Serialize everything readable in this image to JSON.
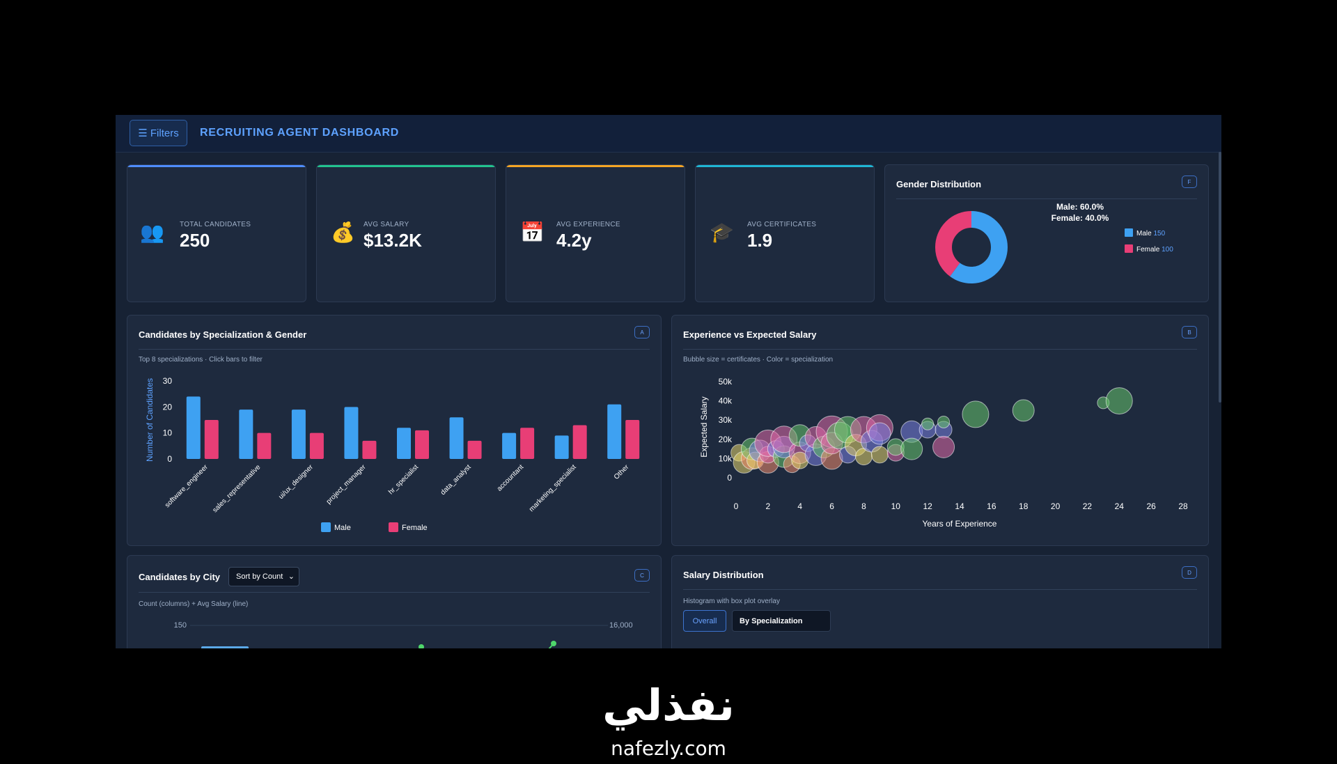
{
  "app": {
    "filters_label": "☰ Filters",
    "title": "RECRUITING AGENT DASHBOARD"
  },
  "kpis": [
    {
      "label": "TOTAL CANDIDATES",
      "value": "250",
      "icon": "people-icon",
      "accent": "#4f8dff"
    },
    {
      "label": "AVG SALARY",
      "value": "$13.2K",
      "icon": "money-bag-icon",
      "accent": "#22c38e"
    },
    {
      "label": "AVG EXPERIENCE",
      "value": "4.2y",
      "icon": "calendar-icon",
      "accent": "#f5a524"
    },
    {
      "label": "AVG CERTIFICATES",
      "value": "1.9",
      "icon": "graduation-cap-icon",
      "accent": "#1fb6d4"
    }
  ],
  "gender": {
    "title": "Gender Distribution",
    "badge": "F",
    "summary_male": "Male: 60.0%",
    "summary_female": "Female: 40.0%"
  },
  "spec_card": {
    "title": "Candidates by Specialization & Gender",
    "badge": "A",
    "subtitle": "Top 8 specializations · Click bars to filter"
  },
  "bubble_card": {
    "title": "Experience vs Expected Salary",
    "badge": "B",
    "subtitle": "Bubble size = certificates · Color = specialization"
  },
  "city_card": {
    "title": "Candidates by City",
    "badge": "C",
    "sort_value": "Sort by Count",
    "subtitle": "Count (columns) + Avg Salary (line)",
    "left_tick": "150",
    "right_tick": "16,000"
  },
  "salary_card": {
    "title": "Salary Distribution",
    "badge": "D",
    "subtitle": "Histogram with box plot overlay",
    "btn_overall": "Overall",
    "btn_by_spec": "By Specialization"
  },
  "brand": {
    "arabic": "نفذلي",
    "latin": "nafezly.com"
  },
  "colors": {
    "male": "#3ea1f2",
    "female": "#e83e76",
    "accent": "#5ea2ff"
  },
  "chart_data": [
    {
      "id": "gender-donut",
      "type": "pie",
      "title": "Gender Distribution",
      "series": [
        {
          "name": "Male",
          "value": 150,
          "color": "#3ea1f2"
        },
        {
          "name": "Female",
          "value": 100,
          "color": "#e83e76"
        }
      ]
    },
    {
      "id": "spec-bar",
      "type": "bar",
      "categories": [
        "software_engineer",
        "sales_representative",
        "ui/ux_designer",
        "project_manager",
        "hr_specialist",
        "data_analyst",
        "accountant",
        "marketing_specialist",
        "Other"
      ],
      "series": [
        {
          "name": "Male",
          "color": "#3ea1f2",
          "values": [
            24,
            19,
            19,
            20,
            12,
            16,
            10,
            9,
            21
          ]
        },
        {
          "name": "Female",
          "color": "#e83e76",
          "values": [
            15,
            10,
            10,
            7,
            11,
            7,
            12,
            13,
            15
          ]
        }
      ],
      "ylabel": "Number of Candidates",
      "ylim": [
        0,
        30
      ],
      "yticks": [
        0,
        10,
        20,
        30
      ],
      "legend": "bottom-center"
    },
    {
      "id": "exp-salary-bubble",
      "type": "scatter",
      "xlabel": "Years of Experience",
      "ylabel": "Expected Salary",
      "xlim": [
        0,
        28
      ],
      "ylim": [
        0,
        50000
      ],
      "xticks": [
        0,
        2,
        4,
        6,
        8,
        10,
        12,
        14,
        16,
        18,
        20,
        22,
        24,
        26,
        28
      ],
      "yticks": [
        {
          "v": 0,
          "l": "0"
        },
        {
          "v": 10000,
          "l": "10k"
        },
        {
          "v": 20000,
          "l": "20k"
        },
        {
          "v": 30000,
          "l": "30k"
        },
        {
          "v": 40000,
          "l": "40k"
        },
        {
          "v": 50000,
          "l": "50k"
        }
      ],
      "points": [
        {
          "x": 0.2,
          "y": 13000,
          "s": 2,
          "c": "#e6d36b"
        },
        {
          "x": 0.5,
          "y": 8000,
          "s": 3,
          "c": "#e6d36b"
        },
        {
          "x": 1,
          "y": 10000,
          "s": 3,
          "c": "#f08a6c"
        },
        {
          "x": 1,
          "y": 15000,
          "s": 3,
          "c": "#67c46b"
        },
        {
          "x": 1.2,
          "y": 9000,
          "s": 2,
          "c": "#e6d36b"
        },
        {
          "x": 1.5,
          "y": 14000,
          "s": 3,
          "c": "#7a7fe0"
        },
        {
          "x": 2,
          "y": 8000,
          "s": 3,
          "c": "#f08a6c"
        },
        {
          "x": 2,
          "y": 12000,
          "s": 2,
          "c": "#e06aa8"
        },
        {
          "x": 2,
          "y": 18000,
          "s": 4,
          "c": "#e06aa8"
        },
        {
          "x": 2.5,
          "y": 15000,
          "s": 2,
          "c": "#7a7fe0"
        },
        {
          "x": 3,
          "y": 11000,
          "s": 3,
          "c": "#67c46b"
        },
        {
          "x": 3,
          "y": 16000,
          "s": 3,
          "c": "#7a7fe0"
        },
        {
          "x": 3,
          "y": 20000,
          "s": 4,
          "c": "#e06aa8"
        },
        {
          "x": 3.5,
          "y": 7000,
          "s": 2,
          "c": "#f08a6c"
        },
        {
          "x": 4,
          "y": 13000,
          "s": 3,
          "c": "#e06aa8"
        },
        {
          "x": 4,
          "y": 22000,
          "s": 3,
          "c": "#67c46b"
        },
        {
          "x": 4,
          "y": 9000,
          "s": 2,
          "c": "#e6d36b"
        },
        {
          "x": 4.5,
          "y": 18000,
          "s": 2,
          "c": "#7a7fe0"
        },
        {
          "x": 5,
          "y": 12000,
          "s": 3,
          "c": "#7a7fe0"
        },
        {
          "x": 5,
          "y": 21000,
          "s": 3,
          "c": "#e06aa8"
        },
        {
          "x": 5.5,
          "y": 16000,
          "s": 3,
          "c": "#67c46b"
        },
        {
          "x": 6,
          "y": 10000,
          "s": 3,
          "c": "#f08a6c"
        },
        {
          "x": 6,
          "y": 24000,
          "s": 5,
          "c": "#e06aa8"
        },
        {
          "x": 6,
          "y": 18000,
          "s": 3,
          "c": "#e06aa8"
        },
        {
          "x": 6.5,
          "y": 22000,
          "s": 4,
          "c": "#67c46b"
        },
        {
          "x": 7,
          "y": 12000,
          "s": 2,
          "c": "#7a7fe0"
        },
        {
          "x": 7,
          "y": 25000,
          "s": 4,
          "c": "#67c46b"
        },
        {
          "x": 7.5,
          "y": 17000,
          "s": 3,
          "c": "#e6d36b"
        },
        {
          "x": 8,
          "y": 25000,
          "s": 4,
          "c": "#e06aa8"
        },
        {
          "x": 8,
          "y": 11000,
          "s": 2,
          "c": "#e6d36b"
        },
        {
          "x": 8.5,
          "y": 19000,
          "s": 3,
          "c": "#7a7fe0"
        },
        {
          "x": 9,
          "y": 26000,
          "s": 4,
          "c": "#e06aa8"
        },
        {
          "x": 9,
          "y": 23000,
          "s": 3,
          "c": "#7a7fe0"
        },
        {
          "x": 9,
          "y": 12000,
          "s": 2,
          "c": "#e6d36b"
        },
        {
          "x": 10,
          "y": 13000,
          "s": 2,
          "c": "#e06aa8"
        },
        {
          "x": 10,
          "y": 16000,
          "s": 2,
          "c": "#67c46b"
        },
        {
          "x": 11,
          "y": 24000,
          "s": 3,
          "c": "#7a7fe0"
        },
        {
          "x": 11,
          "y": 15000,
          "s": 3,
          "c": "#67c46b"
        },
        {
          "x": 12,
          "y": 25000,
          "s": 2,
          "c": "#7a7fe0"
        },
        {
          "x": 12,
          "y": 28000,
          "s": 1,
          "c": "#67c46b"
        },
        {
          "x": 13,
          "y": 25000,
          "s": 2,
          "c": "#7a7fe0"
        },
        {
          "x": 13,
          "y": 16000,
          "s": 3,
          "c": "#e06aa8"
        },
        {
          "x": 13,
          "y": 29000,
          "s": 1,
          "c": "#67c46b"
        },
        {
          "x": 15,
          "y": 33000,
          "s": 4,
          "c": "#67c46b"
        },
        {
          "x": 18,
          "y": 35000,
          "s": 3,
          "c": "#67c46b"
        },
        {
          "x": 23,
          "y": 39000,
          "s": 1,
          "c": "#67c46b"
        },
        {
          "x": 24,
          "y": 40000,
          "s": 4,
          "c": "#67c46b"
        }
      ]
    }
  ]
}
